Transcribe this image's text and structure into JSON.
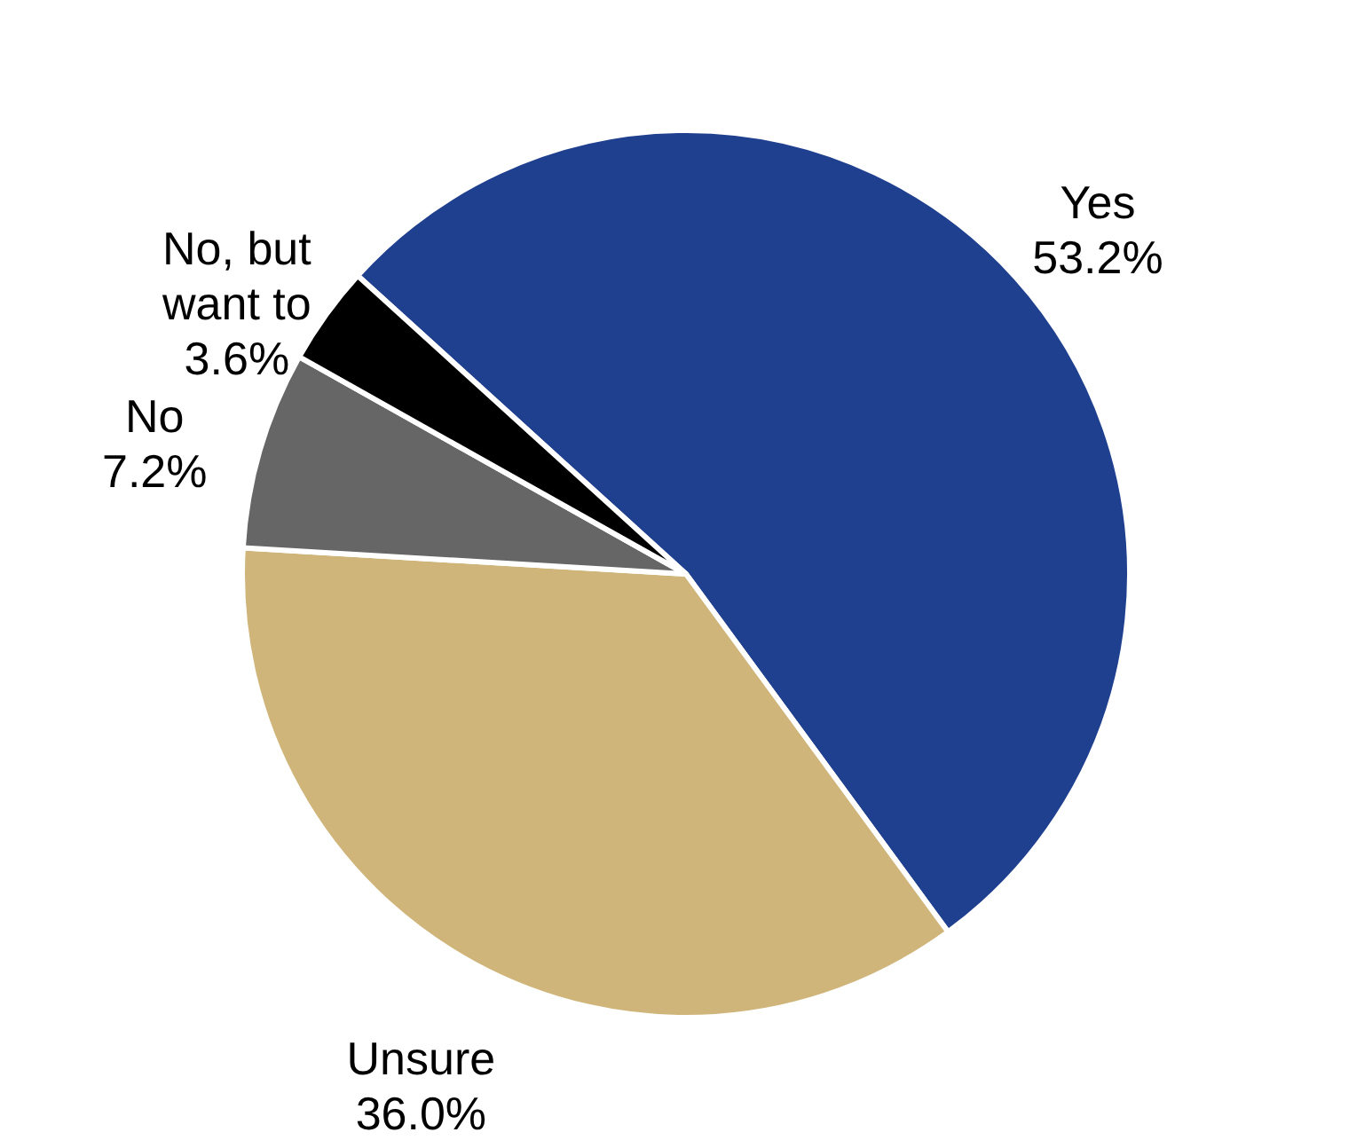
{
  "chart_data": {
    "type": "pie",
    "categories": [
      "Yes",
      "Unsure",
      "No",
      "No, but want to"
    ],
    "values": [
      53.2,
      36.0,
      7.2,
      3.6
    ],
    "value_labels": [
      "53.2%",
      "36.0%",
      "7.2%",
      "3.6%"
    ],
    "colors": [
      "#1f3f8f",
      "#cfb57a",
      "#666666",
      "#000000"
    ]
  }
}
